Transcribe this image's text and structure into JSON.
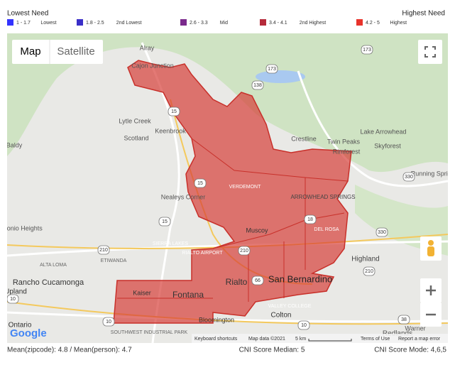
{
  "header": {
    "lowest": "Lowest Need",
    "highest": "Highest Need"
  },
  "legend": [
    {
      "range": "1 - 1.7",
      "label": "Lowest",
      "color": "#3333ff"
    },
    {
      "range": "1.8 - 2.5",
      "label": "2nd Lowest",
      "color": "#3a2fc8"
    },
    {
      "range": "2.6 - 3.3",
      "label": "Mid",
      "color": "#7a2a8c"
    },
    {
      "range": "3.4 - 4.1",
      "label": "2nd Highest",
      "color": "#b52a3a"
    },
    {
      "range": "4.2 - 5",
      "label": "Highest",
      "color": "#e8332b"
    }
  ],
  "map": {
    "type_buttons": [
      "Map",
      "Satellite"
    ],
    "places": [
      "Alray",
      "Cajon Junction",
      "Lytle Creek",
      "Scotland",
      "Keenbrook",
      "Baldy",
      "Crestline",
      "Twin Peaks",
      "Rimforest",
      "Lake Arrowhead",
      "Skyforest",
      "Running Springs",
      "VERDEMONT",
      "ARROWHEAD SPRINGS",
      "Nealeys Corner",
      "Antonio Heights",
      "Muscoy",
      "DEL ROSA",
      "SIERRA LAKES",
      "RIALTO AIRPORT",
      "ETIWANDA",
      "Highland",
      "ALTA LOMA",
      "Rancho Cucamonga",
      "Upland",
      "Kaiser",
      "Fontana",
      "Rialto",
      "San Bernardino",
      "VALLEY COLLEGE",
      "Colton",
      "Bloomington",
      "Ontario",
      "SOUTHWEST INDUSTRIAL PARK",
      "Warner",
      "Redlands"
    ],
    "routes": [
      "173",
      "173",
      "138",
      "15",
      "15",
      "15",
      "210",
      "210",
      "210",
      "330",
      "330",
      "18",
      "66",
      "10",
      "10",
      "10",
      "38"
    ],
    "attribution": {
      "logo": "Google",
      "shortcuts": "Keyboard shortcuts",
      "data": "Map data ©2021",
      "scale": "5 km",
      "terms": "Terms of Use",
      "report": "Report a map error"
    }
  },
  "footer": {
    "mean": "Mean(zipcode): 4.8 / Mean(person): 4.7",
    "median": "CNI Score Median: 5",
    "mode": "CNI Score Mode: 4,6,5"
  }
}
